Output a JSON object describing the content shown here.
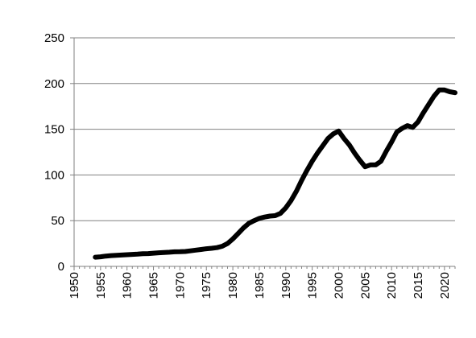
{
  "chart_data": {
    "type": "line",
    "title": "",
    "xlabel": "",
    "ylabel": "",
    "xlim": [
      1950,
      2022
    ],
    "ylim": [
      0,
      250
    ],
    "x_ticks": [
      1950,
      1955,
      1960,
      1965,
      1970,
      1975,
      1980,
      1985,
      1990,
      1995,
      2000,
      2005,
      2010,
      2015,
      2020
    ],
    "y_ticks": [
      0,
      50,
      100,
      150,
      200,
      250
    ],
    "grid": "horizontal",
    "legend": "none",
    "series": [
      {
        "color": "#000000",
        "x": [
          1954,
          1955,
          1956,
          1957,
          1958,
          1959,
          1960,
          1961,
          1962,
          1963,
          1964,
          1965,
          1966,
          1967,
          1968,
          1969,
          1970,
          1971,
          1972,
          1973,
          1974,
          1975,
          1976,
          1977,
          1978,
          1979,
          1980,
          1981,
          1982,
          1983,
          1984,
          1985,
          1986,
          1987,
          1988,
          1989,
          1990,
          1991,
          1992,
          1993,
          1994,
          1995,
          1996,
          1997,
          1998,
          1999,
          2000,
          2001,
          2002,
          2003,
          2004,
          2005,
          2006,
          2007,
          2008,
          2009,
          2010,
          2011,
          2012,
          2013,
          2014,
          2015,
          2016,
          2017,
          2018,
          2019,
          2020,
          2021,
          2022
        ],
        "y": [
          10,
          10.5,
          11.3,
          11.8,
          12.1,
          12.4,
          12.8,
          13.1,
          13.4,
          13.8,
          14,
          14.4,
          14.9,
          15.2,
          15.5,
          15.9,
          16,
          16.3,
          17,
          17.8,
          18.5,
          19.3,
          19.8,
          20.5,
          22,
          25,
          30,
          36,
          42,
          47,
          50,
          52.5,
          54,
          55,
          55.5,
          58,
          64,
          72,
          82,
          94,
          105,
          115,
          124,
          132,
          140,
          145,
          148,
          140,
          133,
          124,
          116,
          109,
          111,
          111,
          115,
          126,
          136,
          147,
          151,
          154,
          152,
          158,
          168,
          177,
          186,
          193,
          193,
          191,
          190
        ]
      }
    ]
  }
}
